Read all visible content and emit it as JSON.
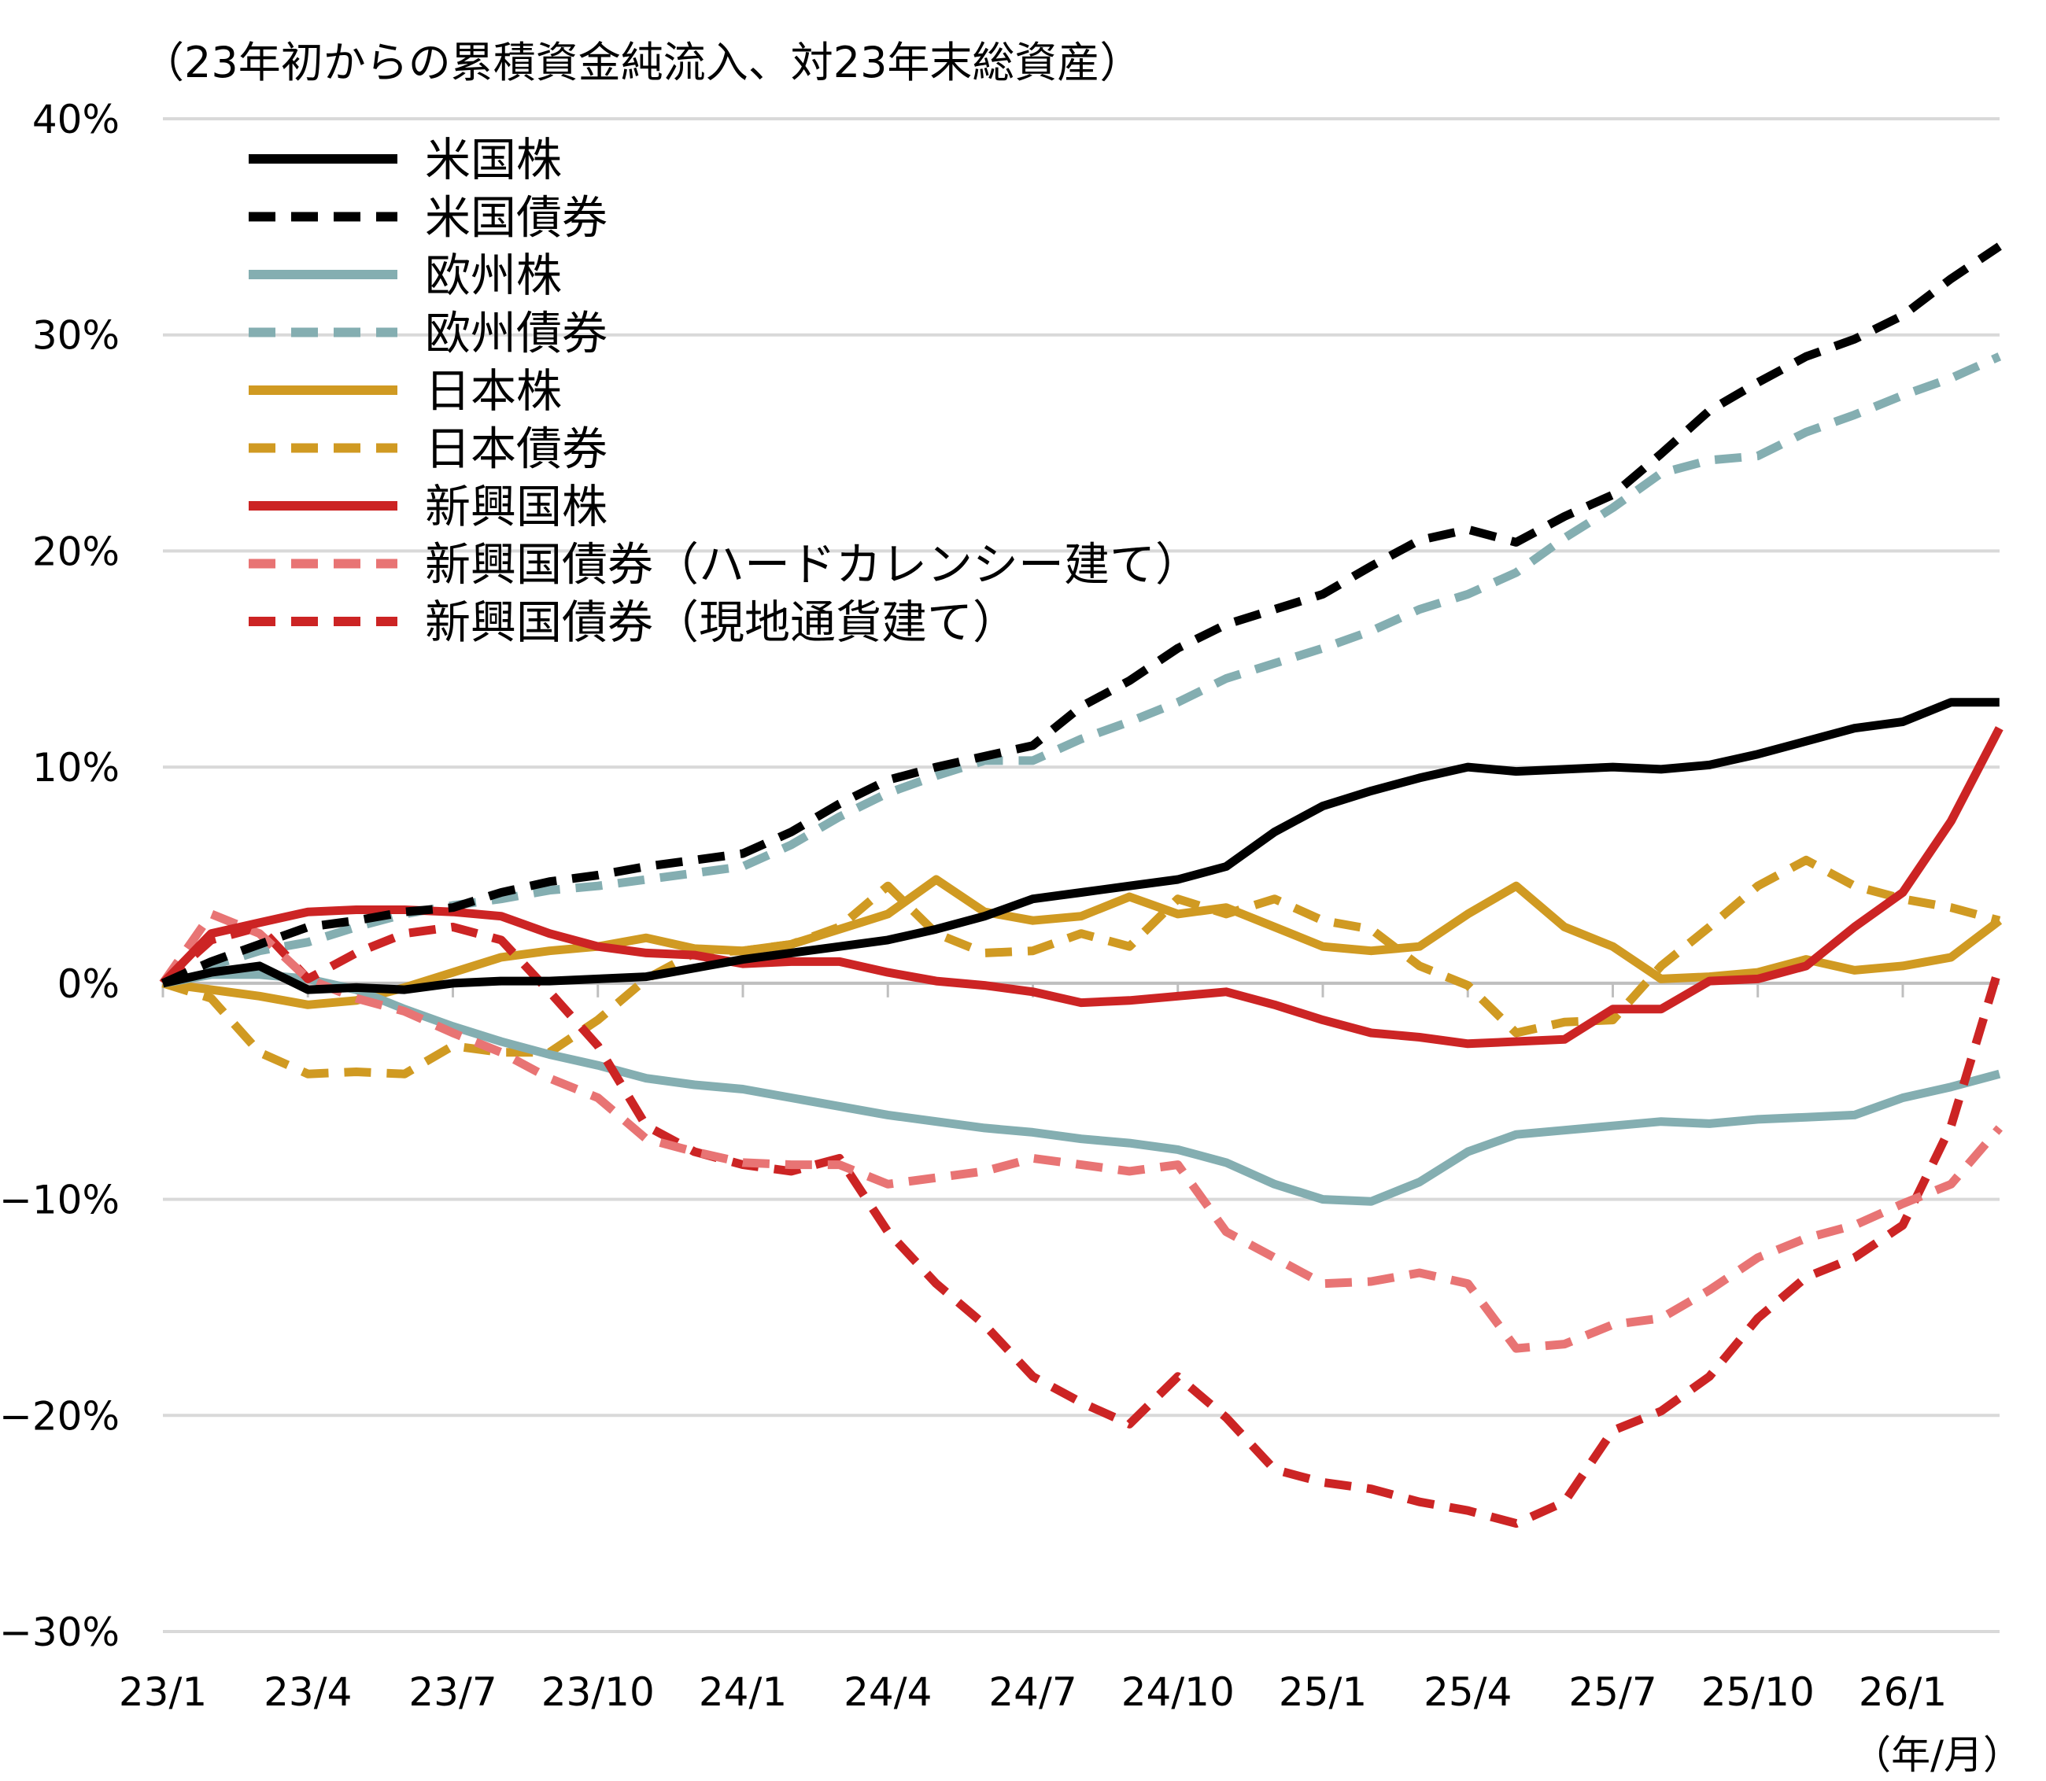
{
  "chart_data": {
    "type": "line",
    "title": "（23年初からの累積資金純流入、対23年末総資産）",
    "xlabel": "（年/月）",
    "ylabel": "",
    "ylim": [
      -30,
      40
    ],
    "yticks": [
      40,
      30,
      20,
      10,
      0,
      -10,
      -20,
      -30
    ],
    "ytick_labels": [
      "40%",
      "30%",
      "20%",
      "10%",
      "0%",
      "−10%",
      "−20%",
      "−30%"
    ],
    "xtick_labels": [
      "23/1",
      "23/4",
      "23/7",
      "23/10",
      "24/1",
      "24/4",
      "24/7",
      "24/10",
      "25/1",
      "25/4",
      "25/7",
      "25/10",
      "26/1"
    ],
    "x": [
      "23/1",
      "23/2",
      "23/3",
      "23/4",
      "23/5",
      "23/6",
      "23/7",
      "23/8",
      "23/9",
      "23/10",
      "23/11",
      "23/12",
      "24/1",
      "24/2",
      "24/3",
      "24/4",
      "24/5",
      "24/6",
      "24/7",
      "24/8",
      "24/9",
      "24/10",
      "24/11",
      "24/12",
      "25/1",
      "25/2",
      "25/3",
      "25/4",
      "25/5",
      "25/6",
      "25/7",
      "25/8",
      "25/9",
      "25/10",
      "25/11",
      "25/12",
      "26/1",
      "26/2",
      "26/3"
    ],
    "grid": true,
    "legend_placement": "top-left",
    "series": [
      {
        "name": "米国株",
        "color": "#000000",
        "dash": false,
        "values": [
          0,
          0.5,
          0.8,
          -0.3,
          -0.2,
          -0.3,
          0,
          0.1,
          0.1,
          0.2,
          0.3,
          0.7,
          1.1,
          1.4,
          1.7,
          2,
          2.5,
          3.1,
          3.9,
          4.2,
          4.5,
          4.8,
          5.4,
          7,
          8.2,
          8.9,
          9.5,
          10,
          9.8,
          9.9,
          10,
          9.9,
          10.1,
          10.6,
          11.2,
          11.8,
          12.1,
          13,
          13
        ]
      },
      {
        "name": "米国債券",
        "color": "#000000",
        "dash": true,
        "values": [
          0,
          1,
          1.8,
          2.6,
          2.9,
          3.3,
          3.5,
          4.2,
          4.7,
          5,
          5.4,
          5.7,
          6,
          7,
          8.3,
          9.4,
          10,
          10.5,
          11,
          12.8,
          14,
          15.5,
          16.6,
          17.3,
          18,
          19.3,
          20.5,
          21,
          20.4,
          21.6,
          22.6,
          24.5,
          26.5,
          27.8,
          29,
          29.8,
          30.9,
          32.6,
          34.1
        ]
      },
      {
        "name": "欧州株",
        "color": "#84aeb1",
        "dash": false,
        "values": [
          0,
          0.4,
          0.4,
          0.2,
          -0.3,
          -1.2,
          -2,
          -2.7,
          -3.3,
          -3.8,
          -4.4,
          -4.7,
          -4.9,
          -5.3,
          -5.7,
          -6.1,
          -6.4,
          -6.7,
          -6.9,
          -7.2,
          -7.4,
          -7.7,
          -8.3,
          -9.3,
          -10,
          -10.1,
          -9.2,
          -7.8,
          -7,
          -6.8,
          -6.6,
          -6.4,
          -6.5,
          -6.3,
          -6.2,
          -6.1,
          -5.3,
          -4.8,
          -4.2
        ]
      },
      {
        "name": "欧州債券",
        "color": "#84aeb1",
        "dash": true,
        "values": [
          0,
          0.8,
          1.5,
          1.9,
          2.6,
          3.2,
          3.6,
          3.9,
          4.3,
          4.5,
          4.8,
          5.1,
          5.4,
          6.4,
          7.7,
          8.8,
          9.6,
          10.3,
          10.3,
          11.3,
          12.1,
          13,
          14.1,
          14.8,
          15.5,
          16.3,
          17.3,
          18,
          19,
          20.6,
          22,
          23.6,
          24.2,
          24.4,
          25.5,
          26.3,
          27.2,
          28,
          29
        ]
      },
      {
        "name": "日本株",
        "color": "#d09a22",
        "dash": false,
        "values": [
          0,
          -0.3,
          -0.6,
          -1,
          -0.8,
          -0.2,
          0.5,
          1.2,
          1.5,
          1.7,
          2.1,
          1.6,
          1.5,
          1.8,
          2.5,
          3.2,
          4.8,
          3.3,
          2.9,
          3.1,
          4,
          3.2,
          3.5,
          2.6,
          1.7,
          1.5,
          1.7,
          3.2,
          4.5,
          2.6,
          1.7,
          0.2,
          0.3,
          0.5,
          1.1,
          0.6,
          0.8,
          1.2,
          2.9
        ]
      },
      {
        "name": "日本債券",
        "color": "#d09a22",
        "dash": true,
        "values": [
          0,
          -0.7,
          -3.2,
          -4.2,
          -4.1,
          -4.2,
          -2.9,
          -3.2,
          -3.2,
          -1.7,
          0.2,
          1.4,
          1.5,
          1.8,
          2.6,
          4.5,
          2.3,
          1.4,
          1.5,
          2.3,
          1.7,
          3.9,
          3.2,
          3.9,
          2.9,
          2.5,
          0.8,
          -0.1,
          -2.3,
          -1.8,
          -1.7,
          0.8,
          2.6,
          4.5,
          5.7,
          4.5,
          3.9,
          3.5,
          2.9
        ]
      },
      {
        "name": "新興国株",
        "color": "#cc2424",
        "dash": false,
        "values": [
          0,
          2.3,
          2.8,
          3.3,
          3.4,
          3.4,
          3.3,
          3.1,
          2.3,
          1.7,
          1.4,
          1.3,
          0.9,
          1,
          1,
          0.5,
          0.1,
          -0.1,
          -0.4,
          -0.9,
          -0.8,
          -0.6,
          -0.4,
          -1,
          -1.7,
          -2.3,
          -2.5,
          -2.8,
          -2.7,
          -2.6,
          -1.2,
          -1.2,
          0.1,
          0.2,
          0.8,
          2.6,
          4.2,
          7.5,
          11.8
        ]
      },
      {
        "name": "新興国債券（ハードカレンシー建て）",
        "color": "#e87474",
        "dash": true,
        "values": [
          0,
          3.2,
          2.3,
          0.2,
          -0.7,
          -1.3,
          -2.3,
          -3.2,
          -4.4,
          -5.3,
          -7.2,
          -7.8,
          -8.3,
          -8.4,
          -8.4,
          -9.3,
          -9,
          -8.7,
          -8.1,
          -8.4,
          -8.7,
          -8.4,
          -11.5,
          -12.7,
          -13.9,
          -13.8,
          -13.4,
          -13.9,
          -16.9,
          -16.7,
          -15.8,
          -15.5,
          -14.2,
          -12.7,
          -11.8,
          -11.2,
          -10.2,
          -9.3,
          -6.7
        ]
      },
      {
        "name": "新興国債券（現地通貨建て）",
        "color": "#cc2424",
        "dash": true,
        "values": [
          0,
          2,
          2.6,
          0.2,
          1.4,
          2.3,
          2.6,
          2,
          -0.4,
          -2.9,
          -6.6,
          -7.8,
          -8.4,
          -8.7,
          -8.1,
          -11.5,
          -13.9,
          -15.8,
          -18.2,
          -19.4,
          -20.4,
          -18.2,
          -20.1,
          -22.5,
          -23.1,
          -23.4,
          -24,
          -24.4,
          -25,
          -24,
          -20.7,
          -19.8,
          -18.2,
          -15.5,
          -13.6,
          -12.7,
          -11.2,
          -6.6,
          0.8
        ]
      }
    ]
  }
}
